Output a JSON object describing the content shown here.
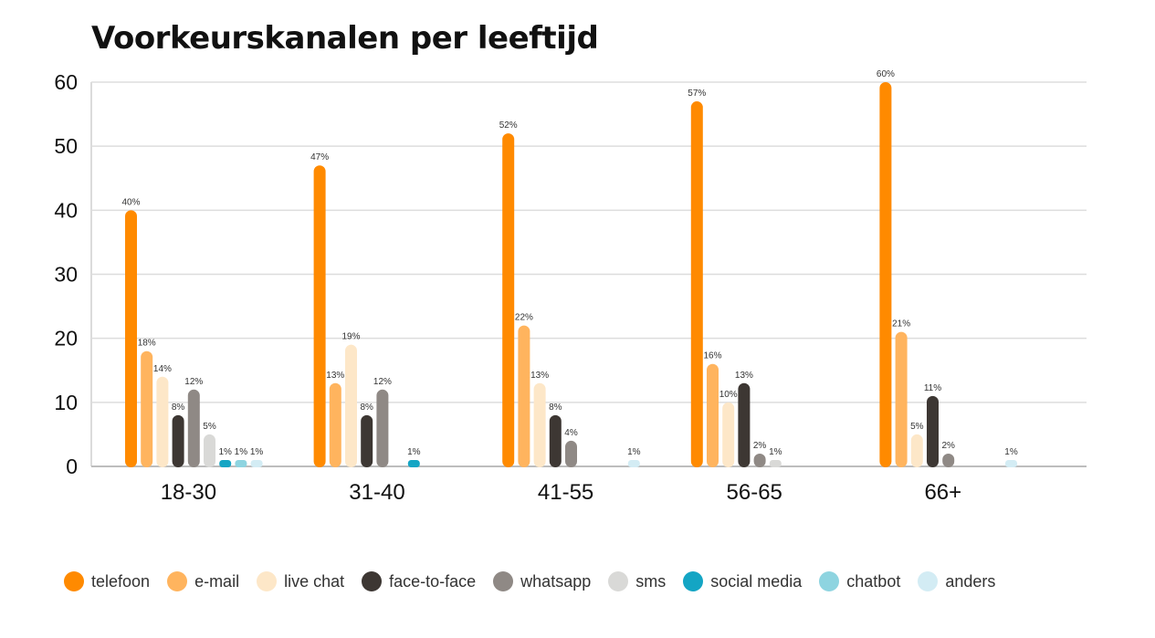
{
  "chart_data": {
    "type": "bar",
    "title": "Voorkeurskanalen per leeftijd",
    "categories": [
      "18-30",
      "31-40",
      "41-55",
      "56-65",
      "66+"
    ],
    "ylim": [
      0,
      60
    ],
    "yticks": [
      0,
      10,
      20,
      30,
      40,
      50,
      60
    ],
    "grid": true,
    "legend_position": "bottom",
    "series": [
      {
        "name": "telefoon",
        "color": "#ff8a00",
        "values": [
          40,
          47,
          52,
          57,
          60
        ],
        "labels": [
          "40%",
          "47%",
          "52%",
          "57%",
          "60%"
        ]
      },
      {
        "name": "e-mail",
        "color": "#ffb45e",
        "values": [
          18,
          13,
          22,
          16,
          21
        ],
        "labels": [
          "18%",
          "13%",
          "22%",
          "16%",
          "21%"
        ]
      },
      {
        "name": "live chat",
        "color": "#fde7c8",
        "values": [
          14,
          19,
          13,
          10,
          5
        ],
        "labels": [
          "14%",
          "19%",
          "13%",
          "10%",
          "5%"
        ]
      },
      {
        "name": "face-to-face",
        "color": "#3d3733",
        "values": [
          8,
          8,
          8,
          13,
          11
        ],
        "labels": [
          "8%",
          "8%",
          "8%",
          "13%",
          "11%"
        ]
      },
      {
        "name": "whatsapp",
        "color": "#8f8985",
        "values": [
          12,
          12,
          4,
          2,
          2
        ],
        "labels": [
          "12%",
          "12%",
          "4%",
          "2%",
          "2%"
        ]
      },
      {
        "name": "sms",
        "color": "#d9d9d7",
        "values": [
          5,
          null,
          null,
          1,
          null
        ],
        "labels": [
          "5%",
          "",
          "",
          "1%",
          ""
        ]
      },
      {
        "name": "social media",
        "color": "#14a5c4",
        "values": [
          1,
          1,
          null,
          null,
          null
        ],
        "labels": [
          "1%",
          "1%",
          "",
          "",
          ""
        ]
      },
      {
        "name": "chatbot",
        "color": "#8ed4e0",
        "values": [
          1,
          null,
          null,
          null,
          null
        ],
        "labels": [
          "1%",
          "",
          "",
          "",
          ""
        ]
      },
      {
        "name": "anders",
        "color": "#d3ecf4",
        "values": [
          1,
          null,
          1,
          null,
          1
        ],
        "labels": [
          "1%",
          "",
          "1%",
          "",
          "1%"
        ]
      }
    ]
  }
}
